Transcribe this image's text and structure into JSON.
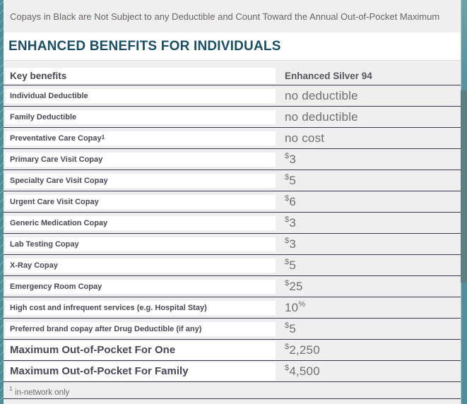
{
  "note": "Copays in Black are Not Subject to any Deductible and Count Toward the Annual Out-of-Pocket Maximum",
  "title": "ENHANCED BENEFITS FOR INDIVIDUALS",
  "table": {
    "key_column_header": "Key benefits",
    "plan_column_header": "Enhanced Silver 94",
    "rows": [
      {
        "label": "Individual Deductible",
        "label_sup": "",
        "value_pre_sup": "",
        "value": "no deductible",
        "value_post_sup": "",
        "emphasis": false
      },
      {
        "label": "Family Deductible",
        "label_sup": "",
        "value_pre_sup": "",
        "value": "no deductible",
        "value_post_sup": "",
        "emphasis": false
      },
      {
        "label": "Preventative Care Copay",
        "label_sup": "1",
        "value_pre_sup": "",
        "value": "no cost",
        "value_post_sup": "",
        "emphasis": false
      },
      {
        "label": "Primary Care Visit Copay",
        "label_sup": "",
        "value_pre_sup": "$",
        "value": "3",
        "value_post_sup": "",
        "emphasis": false
      },
      {
        "label": "Specialty Care Visit Copay",
        "label_sup": "",
        "value_pre_sup": "$",
        "value": "5",
        "value_post_sup": "",
        "emphasis": false
      },
      {
        "label": "Urgent Care Visit Copay",
        "label_sup": "",
        "value_pre_sup": "$",
        "value": "6",
        "value_post_sup": "",
        "emphasis": false
      },
      {
        "label": "Generic Medication Copay",
        "label_sup": "",
        "value_pre_sup": "$",
        "value": "3",
        "value_post_sup": "",
        "emphasis": false
      },
      {
        "label": "Lab Testing Copay",
        "label_sup": "",
        "value_pre_sup": "$",
        "value": "3",
        "value_post_sup": "",
        "emphasis": false
      },
      {
        "label": "X-Ray Copay",
        "label_sup": "",
        "value_pre_sup": "$",
        "value": "5",
        "value_post_sup": "",
        "emphasis": false
      },
      {
        "label": "Emergency Room Copay",
        "label_sup": "",
        "value_pre_sup": "$",
        "value": "25",
        "value_post_sup": "",
        "emphasis": false
      },
      {
        "label": "High cost and infrequent services (e.g. Hospital Stay)",
        "label_sup": "",
        "value_pre_sup": "",
        "value": "10",
        "value_post_sup": "%",
        "emphasis": false
      },
      {
        "label": "Preferred brand copay after Drug Deductible (if any)",
        "label_sup": "",
        "value_pre_sup": "$",
        "value": "5",
        "value_post_sup": "",
        "emphasis": false
      },
      {
        "label": "Maximum Out-of-Pocket For One",
        "label_sup": "",
        "value_pre_sup": "$",
        "value": "2,250",
        "value_post_sup": "",
        "emphasis": true
      },
      {
        "label": "Maximum Out-of-Pocket For Family",
        "label_sup": "",
        "value_pre_sup": "$",
        "value": "4,500",
        "value_post_sup": "",
        "emphasis": true
      }
    ],
    "footnote_sup": "1",
    "footnote": "in-network only"
  },
  "colors": {
    "accent_teal": "#4f8d97",
    "heading": "#1c4e63",
    "row_border": "#3e3647",
    "page_background": "#f0efef",
    "label_text": "#4a4655",
    "value_text": "#6e6f72"
  }
}
